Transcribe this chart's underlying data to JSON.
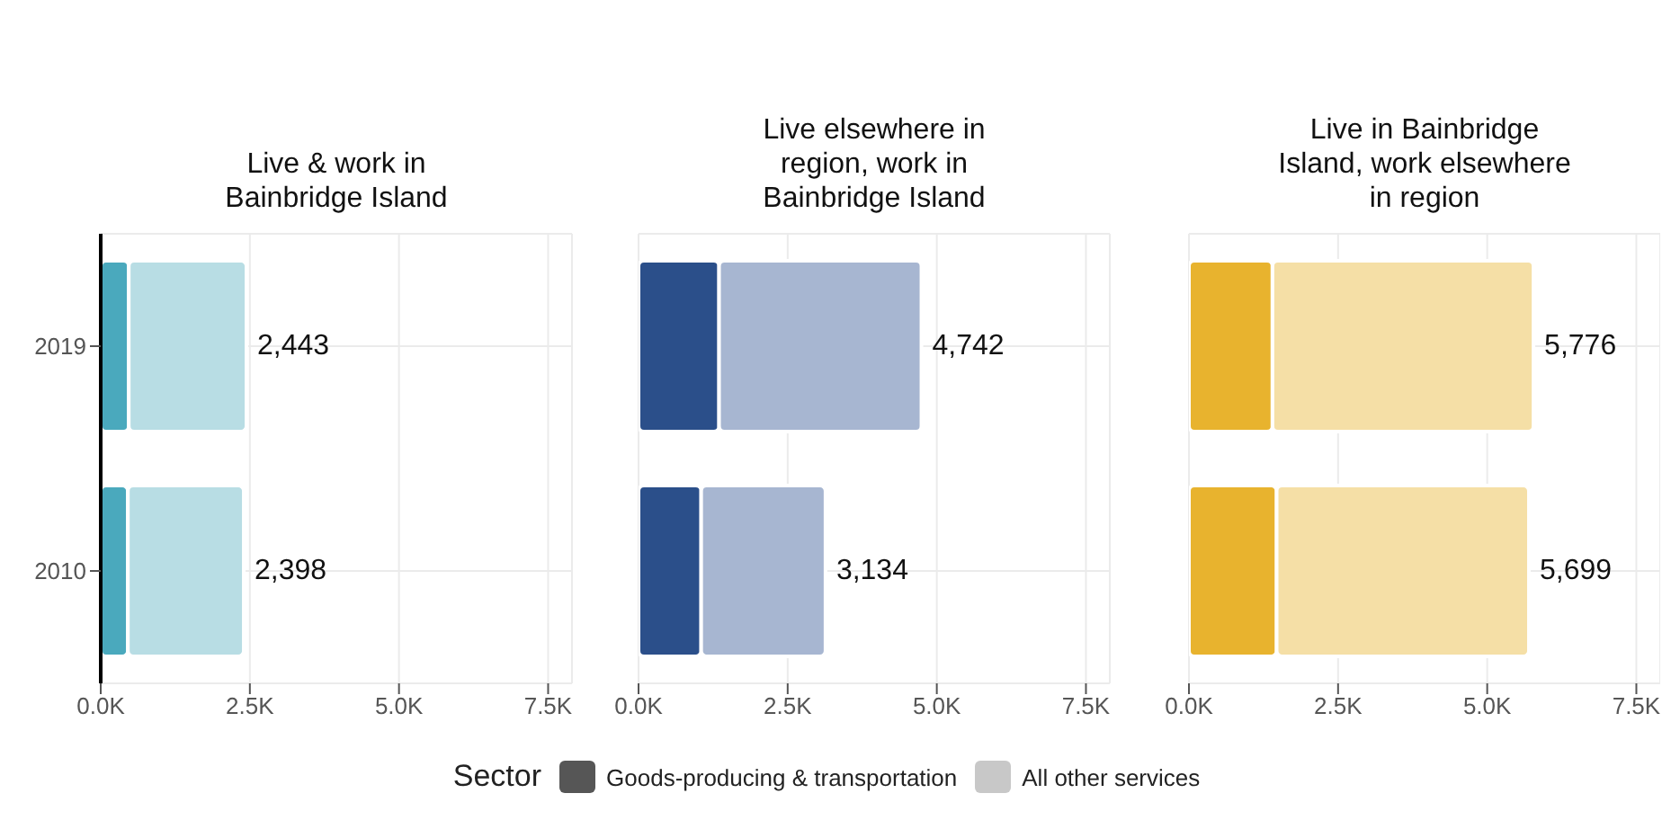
{
  "chart_data": [
    {
      "type": "bar",
      "orientation": "horizontal",
      "stacked": true,
      "title": "Live & work in Bainbridge Island",
      "categories": [
        "2019",
        "2010"
      ],
      "series": [
        {
          "name": "Goods-producing & transportation",
          "color": "#4aa9bd",
          "values": [
            470,
            455
          ]
        },
        {
          "name": "All other services",
          "color": "#b8dde4",
          "values": [
            1973,
            1943
          ]
        }
      ],
      "totals": [
        "2,443",
        "2,398"
      ],
      "xlim": [
        0,
        7900
      ],
      "xticks": [
        {
          "value": 0,
          "label": "0.0K"
        },
        {
          "value": 2500,
          "label": "2.5K"
        },
        {
          "value": 5000,
          "label": "5.0K"
        },
        {
          "value": 7500,
          "label": "7.5K"
        }
      ],
      "grid": true,
      "legend": "bottom",
      "legend_title": "Sector"
    },
    {
      "type": "bar",
      "orientation": "horizontal",
      "stacked": true,
      "title": "Live elsewhere in region, work in Bainbridge Island",
      "categories": [
        "2019",
        "2010"
      ],
      "series": [
        {
          "color": "#2b4f8a",
          "values": [
            1350,
            1050
          ]
        },
        {
          "color": "#a7b6d1",
          "values": [
            3392,
            2084
          ]
        }
      ],
      "totals": [
        "4,742",
        "3,134"
      ],
      "xlim": [
        0,
        7900
      ],
      "xticks": [
        {
          "value": 0,
          "label": "0.0K"
        },
        {
          "value": 2500,
          "label": "2.5K"
        },
        {
          "value": 5000,
          "label": "5.0K"
        },
        {
          "value": 7500,
          "label": "7.5K"
        }
      ],
      "grid": true,
      "tick_labels": "x"
    },
    {
      "type": "bar",
      "orientation": "horizontal",
      "stacked": true,
      "title": "Live in Bainbridge Island, work elsewhere in region",
      "categories": [
        "2019",
        "2010"
      ],
      "series": [
        {
          "color": "#e8b32e",
          "values": [
            1400,
            1470
          ]
        },
        {
          "color": "#f5dfa6",
          "values": [
            4376,
            4229
          ]
        }
      ],
      "totals": [
        "5,776",
        "5,699"
      ],
      "xlim": [
        0,
        7900
      ],
      "xticks": [
        {
          "value": 0,
          "label": "0.0K"
        },
        {
          "value": 2500,
          "label": "2.5K"
        },
        {
          "value": 5000,
          "label": "5.0K"
        },
        {
          "value": 7500,
          "label": "7.5K"
        }
      ],
      "grid": true,
      "tick_labels": "x"
    }
  ]
}
